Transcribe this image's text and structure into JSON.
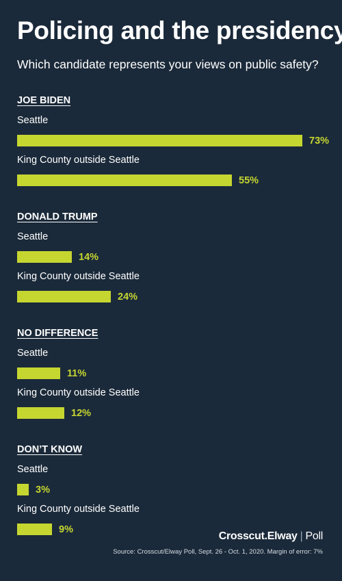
{
  "title": "Policing and the presidency",
  "subtitle": "Which candidate represents your views on public safety?",
  "chart_data": {
    "type": "bar",
    "orientation": "horizontal",
    "title": "Policing and the presidency",
    "subtitle": "Which candidate represents your views on public safety?",
    "unit": "%",
    "xlim": [
      0,
      73
    ],
    "groups": [
      {
        "label": "JOE BIDEN",
        "rows": [
          {
            "label": "Seattle",
            "value": 73,
            "display": "73%"
          },
          {
            "label": "King County outside Seattle",
            "value": 55,
            "display": "55%"
          }
        ]
      },
      {
        "label": "DONALD TRUMP",
        "rows": [
          {
            "label": "Seattle",
            "value": 14,
            "display": "14%"
          },
          {
            "label": "King County outside Seattle",
            "value": 24,
            "display": "24%"
          }
        ]
      },
      {
        "label": "NO DIFFERENCE",
        "rows": [
          {
            "label": "Seattle",
            "value": 11,
            "display": "11%"
          },
          {
            "label": "King County outside Seattle",
            "value": 12,
            "display": "12%"
          }
        ]
      },
      {
        "label": "DON’T KNOW",
        "rows": [
          {
            "label": "Seattle",
            "value": 3,
            "display": "3%"
          },
          {
            "label": "King County outside Seattle",
            "value": 9,
            "display": "9%"
          }
        ]
      }
    ]
  },
  "footer": {
    "brand_main": "Crosscut.Elway",
    "brand_sep": "|",
    "brand_poll": "Poll",
    "source": "Source: Crosscut/Elway Poll, Sept. 26 - Oct. 1, 2020. Margin of error: 7%"
  },
  "colors": {
    "background": "#1b2a3a",
    "bar": "#c6d630",
    "text": "#ffffff"
  }
}
